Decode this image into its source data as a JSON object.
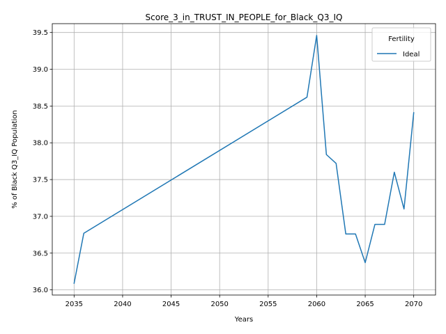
{
  "chart_data": {
    "type": "line",
    "title": "Score_3_in_TRUST_IN_PEOPLE_for_Black_Q3_IQ",
    "xlabel": "Years",
    "ylabel": "% of Black Q3_IQ Population",
    "xlim": [
      2032.75,
      2072.25
    ],
    "ylim": [
      35.93,
      39.62
    ],
    "xticks": [
      2035,
      2040,
      2045,
      2050,
      2055,
      2060,
      2065,
      2070
    ],
    "yticks": [
      36.0,
      36.5,
      37.0,
      37.5,
      38.0,
      38.5,
      39.0,
      39.5
    ],
    "grid": true,
    "legend": {
      "title": "Fertility",
      "position": "top-right"
    },
    "series": [
      {
        "name": "Ideal",
        "color": "#1f77b4",
        "x": [
          2035,
          2036,
          2059,
          2060,
          2061,
          2062,
          2063,
          2064,
          2065,
          2066,
          2067,
          2068,
          2069,
          2070
        ],
        "y": [
          36.09,
          36.77,
          38.62,
          39.46,
          37.84,
          37.72,
          36.76,
          36.76,
          36.37,
          36.89,
          36.89,
          37.6,
          37.1,
          38.41
        ]
      }
    ]
  }
}
